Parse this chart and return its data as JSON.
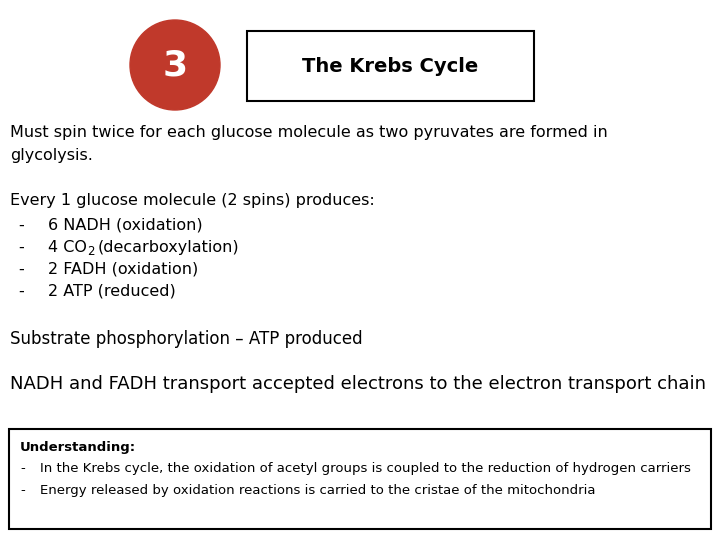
{
  "title": "The Krebs Cycle",
  "circle_number": "3",
  "circle_color": "#c0392b",
  "circle_text_color": "#ffffff",
  "bg_color": "#ffffff",
  "text_color": "#000000",
  "para1_line1": "Must spin twice for each glucose molecule as two pyruvates are formed in",
  "para1_line2": "glycolysis.",
  "para2_header": "Every 1 glucose molecule (2 spins) produces:",
  "bullet1": "6 NADH (oxidation)",
  "bullet2_pre": "4 CO",
  "bullet2_sub": "2",
  "bullet2_post": "(decarboxylation)",
  "bullet3": "2 FADH (oxidation)",
  "bullet4": "2 ATP (reduced)",
  "para3": "Substrate phosphorylation – ATP produced",
  "para4": "NADH and FADH transport accepted electrons to the electron transport chain",
  "understanding_header": "Understanding:",
  "understanding1": "In the Krebs cycle, the oxidation of acetyl groups is coupled to the reduction of hydrogen carriers",
  "understanding2": "Energy released by oxidation reactions is carried to the cristae of the mitochondria",
  "font_main": 11.5,
  "font_title": 14,
  "font_circle": 26,
  "font_para3": 12,
  "font_para4": 13,
  "font_understanding": 9.5,
  "font_understanding_header": 9.5
}
